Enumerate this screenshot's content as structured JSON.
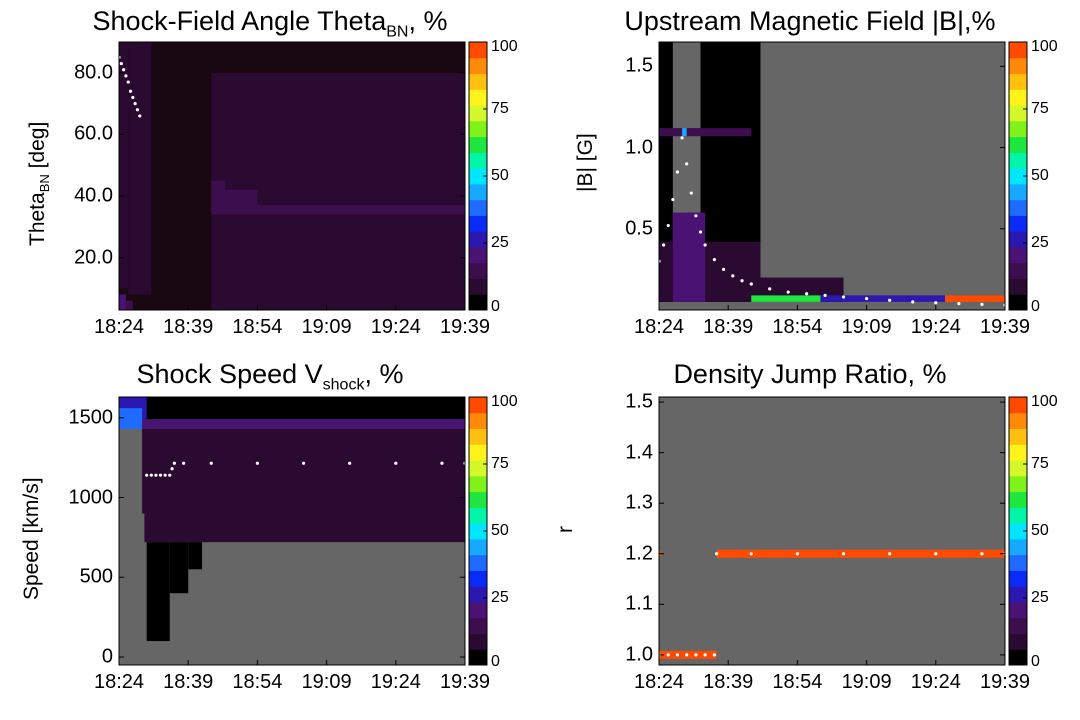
{
  "colorbar": {
    "ticks": [
      "0",
      "25",
      "50",
      "75",
      "100"
    ],
    "colors": [
      "#000000",
      "#2a0a30",
      "#3c0e4e",
      "#4a1273",
      "#2a18b0",
      "#0a2af5",
      "#1f6bff",
      "#16a9ff",
      "#00e6ff",
      "#00f5a8",
      "#20e640",
      "#80f21a",
      "#d4f82a",
      "#fff31c",
      "#ffc010",
      "#ff8a0a",
      "#ff4a00"
    ]
  },
  "chart_data": [
    {
      "type": "heatmap",
      "title": "Shock-Field Angle Theta",
      "title_sub": "BN",
      "title_suffix": ", %",
      "ylabel": "Theta",
      "ylabel_sub": "BN",
      "ylabel_suffix": " [deg]",
      "x_ticks": [
        "18:24",
        "18:39",
        "18:54",
        "19:09",
        "19:24",
        "19:39"
      ],
      "y_ticks": [
        "20.0",
        "40.0",
        "60.0",
        "80.0"
      ],
      "y_tick_values": [
        20,
        40,
        60,
        80
      ],
      "ylim": [
        3,
        90
      ],
      "x_minutes": [
        0,
        75
      ],
      "background": "#190812",
      "bands": [
        {
          "x0": 0,
          "x1": 1.5,
          "y0": 3,
          "y1": 8,
          "pct": 20
        },
        {
          "x0": 1.5,
          "x1": 3,
          "y0": 3,
          "y1": 6,
          "pct": 10
        },
        {
          "x0": 2,
          "x1": 7,
          "y0": 8,
          "y1": 90,
          "pct": 6
        },
        {
          "x0": 0,
          "x1": 2,
          "y0": 10,
          "y1": 90,
          "pct": 4
        },
        {
          "x0": 20,
          "x1": 75,
          "y0": 3,
          "y1": 80,
          "pct": 5
        },
        {
          "x0": 20,
          "x1": 75,
          "y0": 34,
          "y1": 37,
          "pct": 10
        },
        {
          "x0": 20,
          "x1": 30,
          "y0": 37,
          "y1": 42,
          "pct": 10
        },
        {
          "x0": 20,
          "x1": 23,
          "y0": 42,
          "y1": 45,
          "pct": 12
        }
      ],
      "series": [
        {
          "x": [
            0,
            0.5,
            1,
            1.5,
            2,
            2.5,
            3,
            3.5,
            4,
            4.5
          ],
          "y": [
            85,
            83,
            81,
            79,
            77,
            74,
            72,
            70,
            68,
            66
          ]
        }
      ]
    },
    {
      "type": "heatmap",
      "title": "Upstream Magnetic Field |B|,%",
      "ylabel": "|B| [G]",
      "x_ticks": [
        "18:24",
        "18:39",
        "18:54",
        "19:09",
        "19:24",
        "19:39"
      ],
      "y_ticks": [
        "0.5",
        "1.0",
        "1.5"
      ],
      "y_tick_values": [
        0.5,
        1.0,
        1.5
      ],
      "ylim": [
        0.0,
        1.65
      ],
      "x_minutes": [
        0,
        75
      ],
      "background": "#666666",
      "bands": [
        {
          "x0": 0,
          "x1": 3,
          "y0": 0.05,
          "y1": 1.65,
          "pct": 2
        },
        {
          "x0": 9,
          "x1": 22,
          "y0": 0.05,
          "y1": 1.65,
          "pct": 2
        },
        {
          "x0": 0,
          "x1": 20,
          "y0": 1.07,
          "y1": 1.12,
          "pct": 12
        },
        {
          "x0": 5,
          "x1": 6,
          "y0": 1.07,
          "y1": 1.12,
          "pct": 45
        },
        {
          "x0": 0,
          "x1": 22,
          "y0": 0.05,
          "y1": 0.42,
          "pct": 6
        },
        {
          "x0": 22,
          "x1": 40,
          "y0": 0.05,
          "y1": 0.2,
          "pct": 6
        },
        {
          "x0": 3,
          "x1": 10,
          "y0": 0.05,
          "y1": 0.6,
          "pct": 20
        },
        {
          "x0": 20,
          "x1": 35,
          "y0": 0.05,
          "y1": 0.09,
          "pct": 60
        },
        {
          "x0": 35,
          "x1": 62,
          "y0": 0.05,
          "y1": 0.09,
          "pct": 25
        },
        {
          "x0": 62,
          "x1": 75,
          "y0": 0.05,
          "y1": 0.09,
          "pct": 100
        }
      ],
      "series": [
        {
          "x": [
            0,
            1,
            2,
            3,
            4,
            5,
            6,
            7,
            8,
            9,
            10,
            12,
            14,
            16,
            18,
            20,
            24,
            28,
            32,
            36,
            40,
            45,
            50,
            55,
            60,
            65,
            70,
            75
          ],
          "y": [
            0.3,
            0.4,
            0.52,
            0.68,
            0.85,
            1.06,
            0.9,
            0.72,
            0.58,
            0.48,
            0.4,
            0.31,
            0.25,
            0.21,
            0.18,
            0.16,
            0.13,
            0.11,
            0.1,
            0.09,
            0.08,
            0.07,
            0.06,
            0.05,
            0.045,
            0.04,
            0.035,
            0.03
          ]
        }
      ]
    },
    {
      "type": "heatmap",
      "title": "Shock Speed V",
      "title_sub": "shock",
      "title_suffix": ", %",
      "ylabel": "Speed [km/s]",
      "x_ticks": [
        "18:24",
        "18:39",
        "18:54",
        "19:09",
        "19:24",
        "19:39"
      ],
      "y_ticks": [
        "0",
        "500",
        "1000",
        "1500"
      ],
      "y_tick_values": [
        0,
        500,
        1000,
        1500
      ],
      "ylim": [
        -50,
        1630
      ],
      "x_minutes": [
        0,
        75
      ],
      "background": "#666666",
      "bands": [
        {
          "x0": 0,
          "x1": 75,
          "y0": 1490,
          "y1": 1630,
          "pct": 2
        },
        {
          "x0": 0,
          "x1": 6,
          "y0": 1490,
          "y1": 1630,
          "pct": 25
        },
        {
          "x0": 0,
          "x1": 5,
          "y0": 1430,
          "y1": 1560,
          "pct": 35
        },
        {
          "x0": 5,
          "x1": 75,
          "y0": 1430,
          "y1": 1490,
          "pct": 20
        },
        {
          "x0": 5.5,
          "x1": 75,
          "y0": 720,
          "y1": 1430,
          "pct": 8
        },
        {
          "x0": 5,
          "x1": 6,
          "y0": 900,
          "y1": 1430,
          "pct": 6
        },
        {
          "x0": 6,
          "x1": 11,
          "y0": 100,
          "y1": 720,
          "pct": 3
        },
        {
          "x0": 11,
          "x1": 15,
          "y0": 400,
          "y1": 720,
          "pct": 3
        },
        {
          "x0": 15,
          "x1": 18,
          "y0": 550,
          "y1": 720,
          "pct": 3
        }
      ],
      "series": [
        {
          "x": [
            6,
            7,
            8,
            9,
            10,
            11,
            11.5,
            12,
            14,
            20,
            30,
            40,
            50,
            60,
            70,
            75
          ],
          "y": [
            1140,
            1140,
            1140,
            1140,
            1140,
            1140,
            1180,
            1215,
            1215,
            1215,
            1215,
            1215,
            1215,
            1215,
            1215,
            1215
          ]
        }
      ]
    },
    {
      "type": "heatmap",
      "title": "Density Jump Ratio, %",
      "ylabel": "r",
      "x_ticks": [
        "18:24",
        "18:39",
        "18:54",
        "19:09",
        "19:24",
        "19:39"
      ],
      "y_ticks": [
        "1.0",
        "1.1",
        "1.2",
        "1.3",
        "1.4",
        "1.5"
      ],
      "y_tick_values": [
        1.0,
        1.1,
        1.2,
        1.3,
        1.4,
        1.5
      ],
      "ylim": [
        0.98,
        1.51
      ],
      "x_minutes": [
        0,
        75
      ],
      "background": "#666666",
      "bands": [
        {
          "x0": 0,
          "x1": 12.5,
          "y0": 0.992,
          "y1": 1.008,
          "pct": 100
        },
        {
          "x0": 12.5,
          "x1": 75,
          "y0": 1.192,
          "y1": 1.208,
          "pct": 100
        },
        {
          "x0": 0,
          "x1": 0.5,
          "y0": 1.195,
          "y1": 1.205,
          "pct": 100
        }
      ],
      "series": [
        {
          "x": [
            0,
            2,
            4,
            6,
            8,
            10,
            12
          ],
          "y": [
            1.0,
            1.0,
            1.0,
            1.0,
            1.0,
            1.0,
            1.0
          ]
        },
        {
          "x": [
            12.5,
            20,
            30,
            40,
            50,
            60,
            70,
            75
          ],
          "y": [
            1.2,
            1.2,
            1.2,
            1.2,
            1.2,
            1.2,
            1.2,
            1.2
          ]
        }
      ]
    }
  ]
}
